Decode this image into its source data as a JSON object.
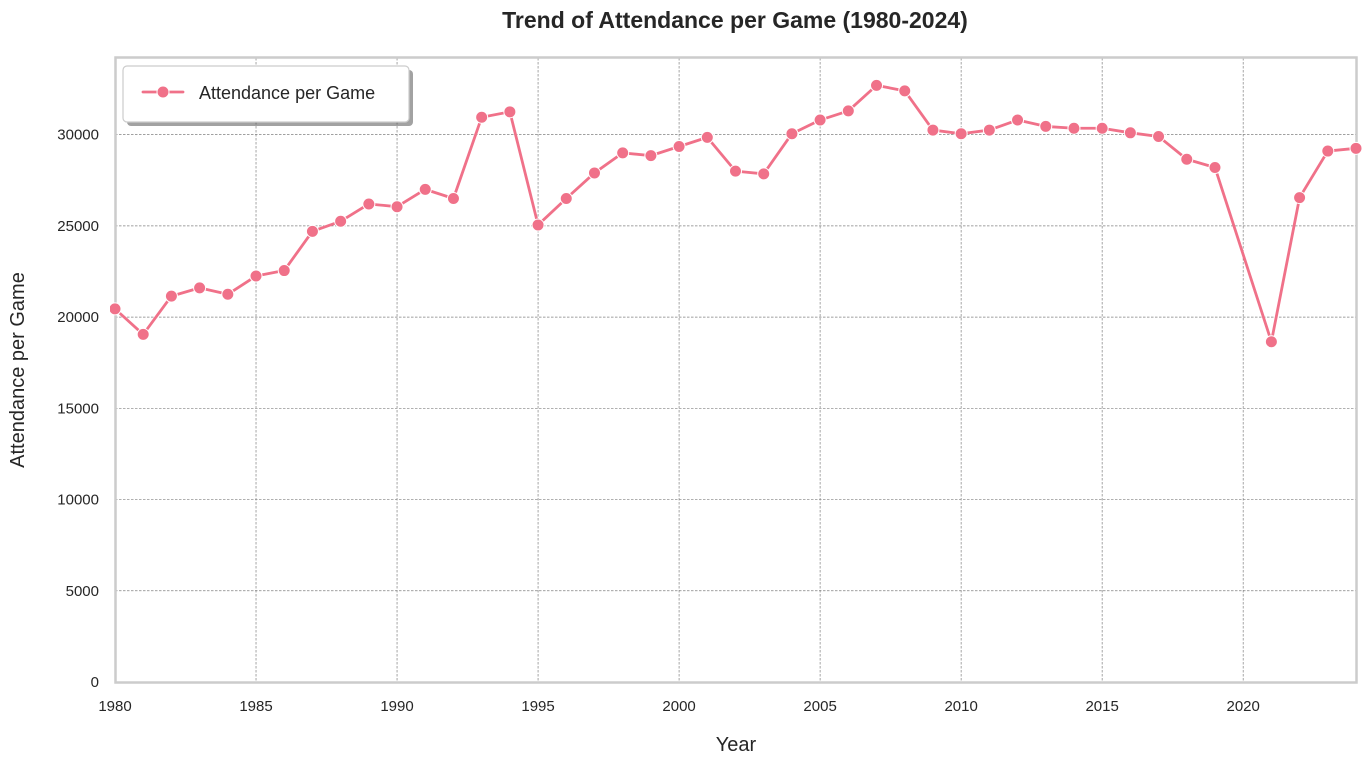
{
  "chart_data": {
    "type": "line",
    "title": "Trend of Attendance per Game (1980-2024)",
    "xlabel": "Year",
    "ylabel": "Attendance per Game",
    "xlim": [
      1980,
      2024
    ],
    "ylim": [
      0,
      34200
    ],
    "xticks": [
      1980,
      1985,
      1990,
      1995,
      2000,
      2005,
      2010,
      2015,
      2020
    ],
    "yticks": [
      0,
      5000,
      10000,
      15000,
      20000,
      25000,
      30000
    ],
    "grid": true,
    "legend_position": "top-left",
    "colors": {
      "series": "#f07189",
      "grid": "#808080",
      "frame": "#cccccc"
    },
    "series": [
      {
        "name": "Attendance per Game",
        "x": [
          1980,
          1981,
          1982,
          1983,
          1984,
          1985,
          1986,
          1987,
          1988,
          1989,
          1990,
          1991,
          1992,
          1993,
          1994,
          1995,
          1996,
          1997,
          1998,
          1999,
          2000,
          2001,
          2002,
          2003,
          2004,
          2005,
          2006,
          2007,
          2008,
          2009,
          2010,
          2011,
          2012,
          2013,
          2014,
          2015,
          2016,
          2017,
          2018,
          2019,
          2020,
          2021,
          2022,
          2023,
          2024
        ],
        "y": [
          20450,
          19050,
          21150,
          21600,
          21250,
          22250,
          22550,
          24700,
          25250,
          26200,
          26050,
          27000,
          26500,
          30950,
          31250,
          25050,
          26500,
          27900,
          29000,
          28850,
          29350,
          29850,
          28000,
          27850,
          30050,
          30800,
          31300,
          32700,
          32400,
          30250,
          30050,
          30250,
          30800,
          30450,
          30350,
          30350,
          30100,
          29900,
          28650,
          28200,
          null,
          18650,
          26550,
          29100,
          29250
        ]
      }
    ]
  }
}
